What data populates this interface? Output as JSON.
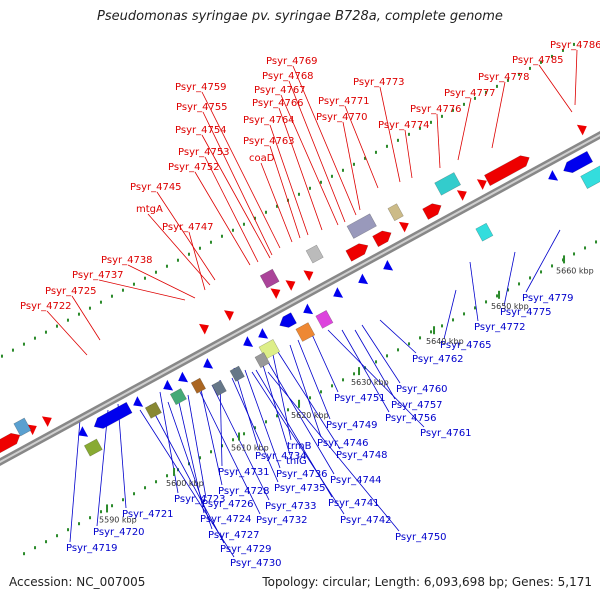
{
  "title": "Pseudomonas syringae pv. syringae B728a, complete genome",
  "footer": {
    "accession": "Accession: NC_007005",
    "topology": "Topology: circular; Length: 6,093,698 bp; Genes: 5,171"
  },
  "colors": {
    "forward_gene": "#ee0000",
    "reverse_gene": "#0000ee",
    "backbone": "#9a9a9a",
    "dots": "#2a8a2a",
    "top_label": "#dd0000",
    "bottom_label": "#0000cc"
  },
  "kbp_labels": [
    "5590 kbp",
    "5600 kbp",
    "5610 kbp",
    "5620 kbp",
    "5630 kbp",
    "5640 kbp",
    "5650 kbp",
    "5660 kbp"
  ],
  "top_labels": [
    "Psyr_4786",
    "Psyr_4785",
    "Psyr_4778",
    "Psyr_4777",
    "Psyr_4776",
    "Psyr_4774",
    "Psyr_4773",
    "Psyr_4771",
    "Psyr_4770",
    "Psyr_4769",
    "Psyr_4768",
    "Psyr_4767",
    "Psyr_4766",
    "Psyr_4764",
    "Psyr_4763",
    "coaD",
    "Psyr_4759",
    "Psyr_4755",
    "Psyr_4754",
    "Psyr_4753",
    "Psyr_4752",
    "Psyr_4745",
    "mtgA",
    "Psyr_4747",
    "Psyr_4738",
    "Psyr_4737",
    "Psyr_4725",
    "Psyr_4722"
  ],
  "bottom_labels": [
    "Psyr_4779",
    "Psyr_4775",
    "Psyr_4772",
    "Psyr_4765",
    "Psyr_4762",
    "Psyr_4760",
    "Psyr_4757",
    "Psyr_4756",
    "Psyr_4761",
    "Psyr_4751",
    "Psyr_4749",
    "Psyr_4746",
    "trmB",
    "Psyr_4748",
    "thiG",
    "Psyr_4734",
    "Psyr_4736",
    "Psyr_4744",
    "Psyr_4731",
    "Psyr_4735",
    "Psyr_4728",
    "Psyr_4741",
    "Psyr_4733",
    "Psyr_4723",
    "Psyr_4726",
    "Psyr_4742",
    "Psyr_4724",
    "Psyr_4732",
    "Psyr_4721",
    "Psyr_4750",
    "Psyr_4727",
    "Psyr_4720",
    "Psyr_4729",
    "Psyr_4719",
    "Psyr_4730"
  ]
}
